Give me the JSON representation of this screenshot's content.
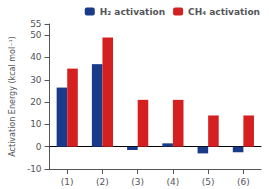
{
  "chart_data": {
    "type": "bar",
    "categories": [
      "(1)",
      "(2)",
      "(3)",
      "(4)",
      "(5)",
      "(6)"
    ],
    "series": [
      {
        "name": "H₂ activation",
        "color": "#1a3a8a",
        "values": [
          26.5,
          37.0,
          -1.5,
          1.5,
          -3.0,
          -2.5
        ]
      },
      {
        "name": "CH₄ activation",
        "color": "#d42020",
        "values": [
          35.0,
          49.0,
          21.0,
          21.0,
          14.0,
          14.0
        ]
      }
    ],
    "ylabel": "Activation Energy (kcal mol⁻¹)",
    "ylim": [
      -10,
      55
    ],
    "yticks": [
      -10,
      0,
      10,
      20,
      30,
      40,
      50,
      55
    ],
    "grid": false,
    "legend": "upper right"
  }
}
